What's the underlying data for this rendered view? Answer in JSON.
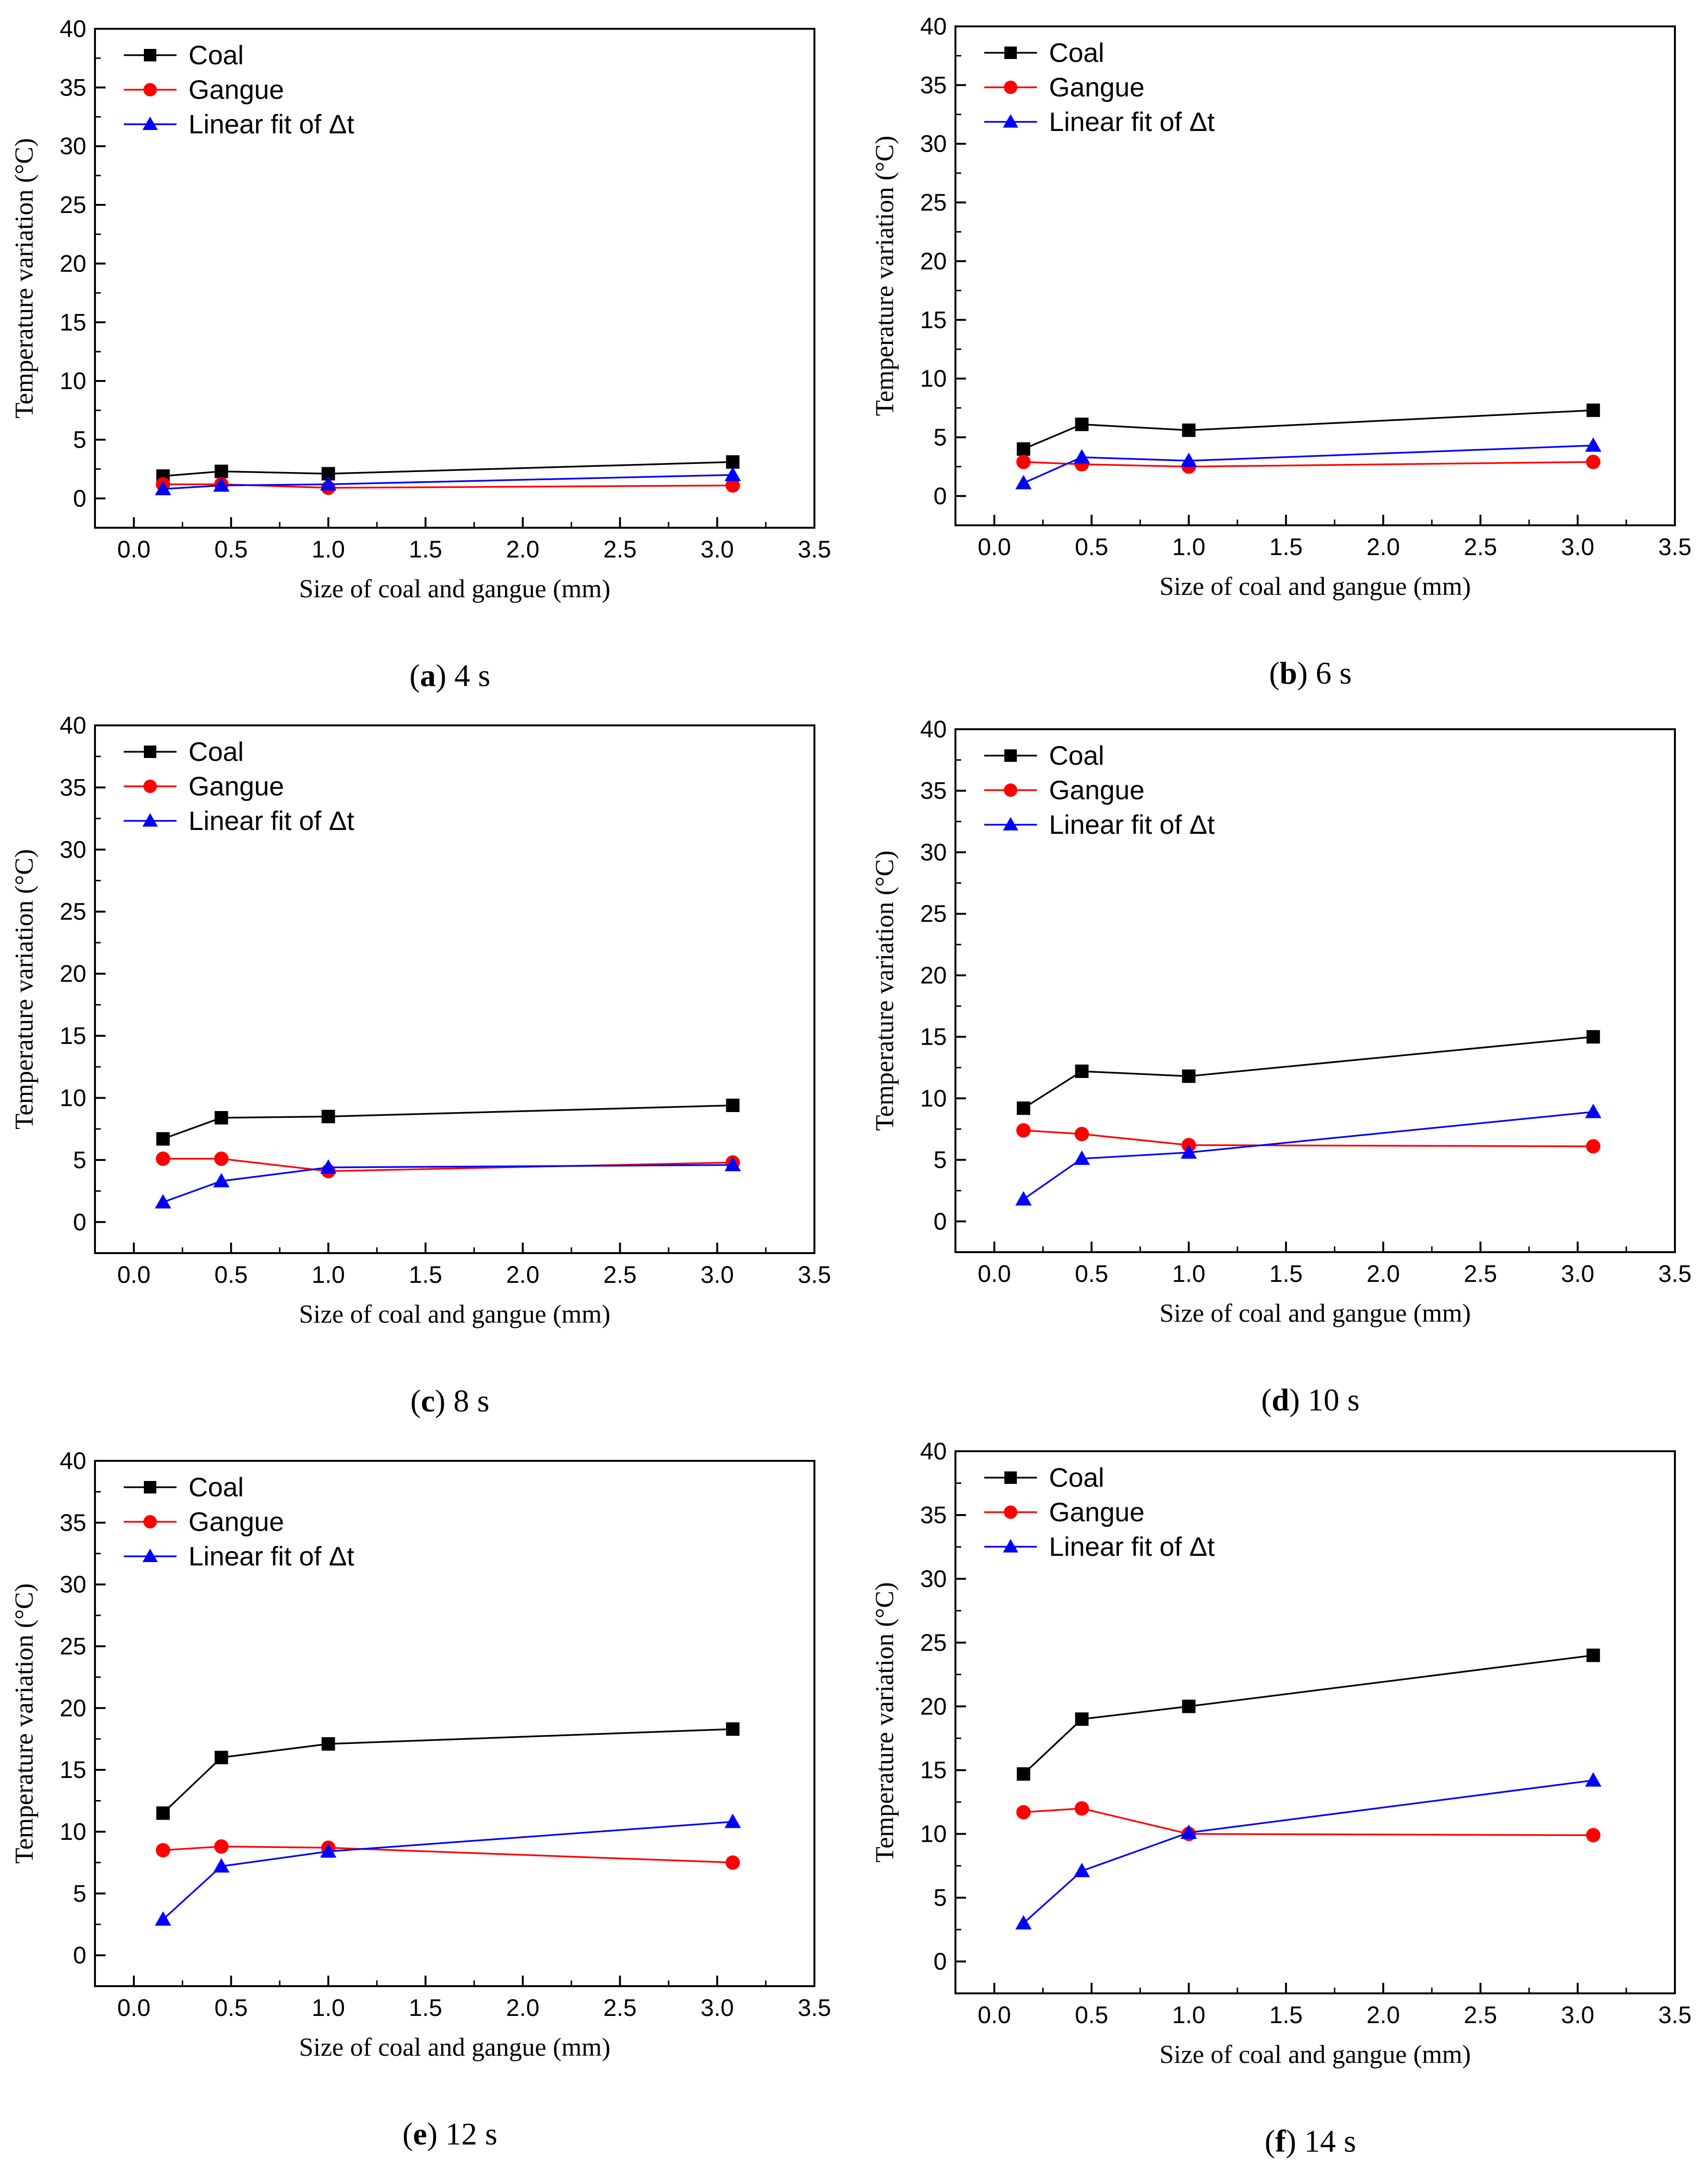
{
  "shared": {
    "xlabel": "Size of coal and gangue (mm)",
    "ylabel": "Temperature variation (°C)",
    "xlim": [
      -0.2,
      3.5
    ],
    "ylim": [
      -2.5,
      40
    ],
    "xticks": [
      "0.0",
      "0.5",
      "1.0",
      "1.5",
      "2.0",
      "2.5",
      "3.0",
      "3.5"
    ],
    "yticks": [
      "0",
      "5",
      "10",
      "15",
      "20",
      "25",
      "30",
      "35",
      "40"
    ],
    "x": [
      0.15,
      0.45,
      1.0,
      3.08
    ],
    "legend": [
      "Coal",
      "Gangue",
      "Linear fit of Δt"
    ],
    "colors": {
      "coal": "#000000",
      "gangue": "#ff0000",
      "fit": "#0000ff"
    },
    "legend_placement": "top-left"
  },
  "chart_data": [
    {
      "type": "line",
      "caption_letter": "a",
      "caption_rest": " 4 s",
      "title": "(a) 4 s",
      "xlabel": "Size of coal and gangue (mm)",
      "ylabel": "Temperature variation (°C)",
      "xlim": [
        -0.2,
        3.5
      ],
      "ylim": [
        -2.5,
        40
      ],
      "x": [
        0.15,
        0.45,
        1.0,
        3.08
      ],
      "series": [
        {
          "name": "Coal",
          "values": [
            1.9,
            2.3,
            2.1,
            3.1
          ]
        },
        {
          "name": "Gangue",
          "values": [
            1.2,
            1.2,
            0.9,
            1.1
          ]
        },
        {
          "name": "Linear fit of Δt",
          "values": [
            0.8,
            1.1,
            1.2,
            2.0
          ]
        }
      ]
    },
    {
      "type": "line",
      "caption_letter": "b",
      "caption_rest": " 6 s",
      "title": "(b) 6 s",
      "xlabel": "Size of coal and gangue (mm)",
      "ylabel": "Temperature variation (°C)",
      "xlim": [
        -0.2,
        3.5
      ],
      "ylim": [
        -2.5,
        40
      ],
      "x": [
        0.15,
        0.45,
        1.0,
        3.08
      ],
      "series": [
        {
          "name": "Coal",
          "values": [
            4.0,
            6.1,
            5.6,
            7.3
          ]
        },
        {
          "name": "Gangue",
          "values": [
            2.9,
            2.7,
            2.5,
            2.9
          ]
        },
        {
          "name": "Linear fit of Δt",
          "values": [
            1.1,
            3.3,
            3.0,
            4.3
          ]
        }
      ]
    },
    {
      "type": "line",
      "caption_letter": "c",
      "caption_rest": " 8 s",
      "title": "(c) 8 s",
      "xlabel": "Size of coal and gangue (mm)",
      "ylabel": "Temperature variation (°C)",
      "xlim": [
        -0.2,
        3.5
      ],
      "ylim": [
        -2.5,
        40
      ],
      "x": [
        0.15,
        0.45,
        1.0,
        3.08
      ],
      "series": [
        {
          "name": "Coal",
          "values": [
            6.7,
            8.4,
            8.5,
            9.4
          ]
        },
        {
          "name": "Gangue",
          "values": [
            5.1,
            5.1,
            4.1,
            4.8
          ]
        },
        {
          "name": "Linear fit of Δt",
          "values": [
            1.6,
            3.3,
            4.4,
            4.6
          ]
        }
      ]
    },
    {
      "type": "line",
      "caption_letter": "d",
      "caption_rest": " 10 s",
      "title": "(d) 10 s",
      "xlabel": "Size of coal and gangue (mm)",
      "ylabel": "Temperature variation (°C)",
      "xlim": [
        -0.2,
        3.5
      ],
      "ylim": [
        -2.5,
        40
      ],
      "x": [
        0.15,
        0.45,
        1.0,
        3.08
      ],
      "series": [
        {
          "name": "Coal",
          "values": [
            9.2,
            12.2,
            11.8,
            15.0
          ]
        },
        {
          "name": "Gangue",
          "values": [
            7.4,
            7.1,
            6.2,
            6.1
          ]
        },
        {
          "name": "Linear fit of Δt",
          "values": [
            1.8,
            5.1,
            5.6,
            8.9
          ]
        }
      ]
    },
    {
      "type": "line",
      "caption_letter": "e",
      "caption_rest": " 12 s",
      "title": "(e) 12 s",
      "xlabel": "Size of coal and gangue (mm)",
      "ylabel": "Temperature variation (°C)",
      "xlim": [
        -0.2,
        3.5
      ],
      "ylim": [
        -2.5,
        40
      ],
      "x": [
        0.15,
        0.45,
        1.0,
        3.08
      ],
      "series": [
        {
          "name": "Coal",
          "values": [
            11.5,
            16.0,
            17.1,
            18.3
          ]
        },
        {
          "name": "Gangue",
          "values": [
            8.5,
            8.8,
            8.7,
            7.5
          ]
        },
        {
          "name": "Linear fit of Δt",
          "values": [
            2.9,
            7.2,
            8.4,
            10.8
          ]
        }
      ]
    },
    {
      "type": "line",
      "caption_letter": "f",
      "caption_rest": " 14 s",
      "title": "(f) 14 s",
      "xlabel": "Size of coal and gangue (mm)",
      "ylabel": "Temperature variation (°C)",
      "xlim": [
        -0.2,
        3.5
      ],
      "ylim": [
        -2.5,
        40
      ],
      "x": [
        0.15,
        0.45,
        1.0,
        3.08
      ],
      "series": [
        {
          "name": "Coal",
          "values": [
            14.7,
            19.0,
            20.0,
            24.0
          ]
        },
        {
          "name": "Gangue",
          "values": [
            11.7,
            12.0,
            10.0,
            9.9
          ]
        },
        {
          "name": "Linear fit of Δt",
          "values": [
            3.0,
            7.1,
            10.1,
            14.2
          ]
        }
      ]
    }
  ]
}
